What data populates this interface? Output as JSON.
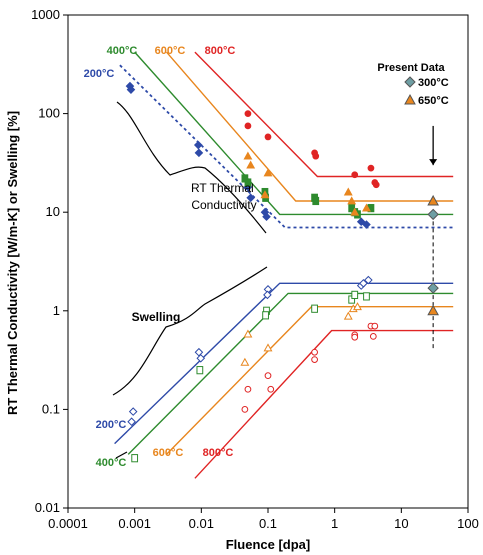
{
  "chart_data": {
    "type": "scatter",
    "xlabel": "Fluence [dpa]",
    "ylabel": "RT Thermal Conductivity [W/m-K] or Swelling [%]",
    "xscale": "log",
    "yscale": "log",
    "xlim": [
      0.0001,
      100
    ],
    "ylim": [
      0.01,
      1000
    ],
    "x_ticks": [
      "0.0001",
      "0.001",
      "0.01",
      "0.1",
      "1",
      "10",
      "100"
    ],
    "y_ticks": [
      "0.01",
      "0.1",
      "1",
      "10",
      "100",
      "1000"
    ],
    "grid": false,
    "colors": {
      "200C": "#2e4aa8",
      "400C": "#2e8b2e",
      "600C": "#e8861e",
      "800C": "#e02424",
      "present_300C": "#6e9ea3",
      "present_650C": "#e8861e"
    },
    "annotations": {
      "thermal_group": "RT Thermal\nConductivity",
      "swelling_group": "Swelling",
      "present_data": "Present Data"
    },
    "curve_labels": {
      "thermal": [
        {
          "text": "200°C",
          "series": "200C"
        },
        {
          "text": "400°C",
          "series": "400C"
        },
        {
          "text": "600°C",
          "series": "600C"
        },
        {
          "text": "800°C",
          "series": "800C"
        }
      ],
      "swelling": [
        {
          "text": "200°C",
          "series": "200C"
        },
        {
          "text": "400°C",
          "series": "400C"
        },
        {
          "text": "600°C",
          "series": "600C"
        },
        {
          "text": "800°C",
          "series": "800C"
        }
      ]
    },
    "legend": [
      {
        "label": "300°C",
        "marker": "diamond",
        "color": "#6e9ea3"
      },
      {
        "label": "650°C",
        "marker": "triangle",
        "color": "#e8861e"
      }
    ],
    "present_fluence": 30,
    "trend_lines": {
      "thermal": [
        {
          "series": "200C",
          "style": "dashed",
          "points": [
            [
              0.0006,
              310
            ],
            [
              0.18,
              7
            ],
            [
              60,
              7
            ]
          ]
        },
        {
          "series": "400C",
          "style": "solid",
          "points": [
            [
              0.001,
              420
            ],
            [
              0.15,
              9.5
            ],
            [
              60,
              9.5
            ]
          ]
        },
        {
          "series": "600C",
          "style": "solid",
          "points": [
            [
              0.003,
              420
            ],
            [
              0.26,
              13
            ],
            [
              60,
              13
            ]
          ]
        },
        {
          "series": "800C",
          "style": "solid",
          "points": [
            [
              0.008,
              420
            ],
            [
              0.55,
              23
            ],
            [
              60,
              23
            ]
          ]
        }
      ],
      "swelling": [
        {
          "series": "200C",
          "style": "solid",
          "points": [
            [
              0.0005,
              0.045
            ],
            [
              0.15,
              1.9
            ],
            [
              60,
              1.9
            ]
          ]
        },
        {
          "series": "400C",
          "style": "solid",
          "points": [
            [
              0.0008,
              0.035
            ],
            [
              0.2,
              1.5
            ],
            [
              60,
              1.5
            ]
          ]
        },
        {
          "series": "600C",
          "style": "solid",
          "points": [
            [
              0.003,
              0.035
            ],
            [
              0.45,
              1.1
            ],
            [
              60,
              1.1
            ]
          ]
        },
        {
          "series": "800C",
          "style": "solid",
          "points": [
            [
              0.008,
              0.02
            ],
            [
              0.9,
              0.63
            ],
            [
              60,
              0.63
            ]
          ]
        }
      ]
    },
    "series": [
      {
        "group": "thermal",
        "series": "200C",
        "marker": "diamond-filled",
        "points": [
          [
            0.00085,
            190
          ],
          [
            0.00088,
            175
          ],
          [
            0.009,
            48
          ],
          [
            0.0092,
            40
          ],
          [
            0.05,
            18
          ],
          [
            0.055,
            14
          ],
          [
            0.09,
            10
          ],
          [
            0.095,
            9
          ],
          [
            2.5,
            8
          ],
          [
            3,
            7.5
          ]
        ]
      },
      {
        "group": "thermal",
        "series": "400C",
        "marker": "square-filled",
        "points": [
          [
            0.045,
            22
          ],
          [
            0.05,
            20
          ],
          [
            0.09,
            16
          ],
          [
            0.092,
            14
          ],
          [
            0.5,
            14
          ],
          [
            0.52,
            13
          ],
          [
            1.8,
            11
          ],
          [
            2,
            10
          ],
          [
            2.2,
            9.5
          ],
          [
            3.5,
            11
          ]
        ]
      },
      {
        "group": "thermal",
        "series": "600C",
        "marker": "triangle-filled",
        "points": [
          [
            0.05,
            37
          ],
          [
            0.055,
            30
          ],
          [
            0.1,
            25
          ],
          [
            0.09,
            15
          ],
          [
            1.6,
            16
          ],
          [
            1.8,
            13
          ],
          [
            2,
            10
          ],
          [
            3,
            11
          ]
        ]
      },
      {
        "group": "thermal",
        "series": "800C",
        "marker": "circle-filled",
        "points": [
          [
            0.05,
            100
          ],
          [
            0.05,
            75
          ],
          [
            0.1,
            58
          ],
          [
            0.5,
            40
          ],
          [
            0.52,
            37
          ],
          [
            2,
            24
          ],
          [
            3.5,
            28
          ],
          [
            4,
            20
          ],
          [
            4.2,
            19
          ]
        ]
      },
      {
        "group": "swelling",
        "series": "200C",
        "marker": "diamond-open",
        "points": [
          [
            0.00095,
            0.095
          ],
          [
            0.0009,
            0.075
          ],
          [
            0.0092,
            0.38
          ],
          [
            0.0098,
            0.33
          ],
          [
            0.1,
            1.65
          ],
          [
            0.098,
            1.45
          ],
          [
            2.5,
            1.8
          ],
          [
            2.7,
            1.9
          ],
          [
            3.2,
            2.05
          ]
        ]
      },
      {
        "group": "swelling",
        "series": "400C",
        "marker": "square-open",
        "points": [
          [
            0.001,
            0.032
          ],
          [
            0.0095,
            0.25
          ],
          [
            0.095,
            1
          ],
          [
            0.092,
            0.9
          ],
          [
            0.5,
            1.05
          ],
          [
            1.8,
            1.3
          ],
          [
            2,
            1.45
          ],
          [
            3,
            1.4
          ]
        ]
      },
      {
        "group": "swelling",
        "series": "600C",
        "marker": "triangle-open",
        "points": [
          [
            0.05,
            0.58
          ],
          [
            0.045,
            0.3
          ],
          [
            0.1,
            0.42
          ],
          [
            1.6,
            0.88
          ],
          [
            1.9,
            1.05
          ],
          [
            2.2,
            1.1
          ]
        ]
      },
      {
        "group": "swelling",
        "series": "800C",
        "marker": "circle-open",
        "points": [
          [
            0.05,
            0.16
          ],
          [
            0.045,
            0.1
          ],
          [
            0.1,
            0.22
          ],
          [
            0.11,
            0.16
          ],
          [
            0.5,
            0.38
          ],
          [
            0.5,
            0.32
          ],
          [
            2,
            0.57
          ],
          [
            2,
            0.54
          ],
          [
            3.5,
            0.7
          ],
          [
            4,
            0.7
          ],
          [
            3.8,
            0.55
          ]
        ]
      },
      {
        "group": "present",
        "series": "present_300C",
        "marker": "diamond-filled",
        "points": [
          [
            30,
            9.5
          ],
          [
            30,
            1.7
          ]
        ]
      },
      {
        "group": "present",
        "series": "present_650C",
        "marker": "triangle-filled",
        "points": [
          [
            30,
            13
          ],
          [
            30,
            1.0
          ]
        ]
      }
    ]
  }
}
